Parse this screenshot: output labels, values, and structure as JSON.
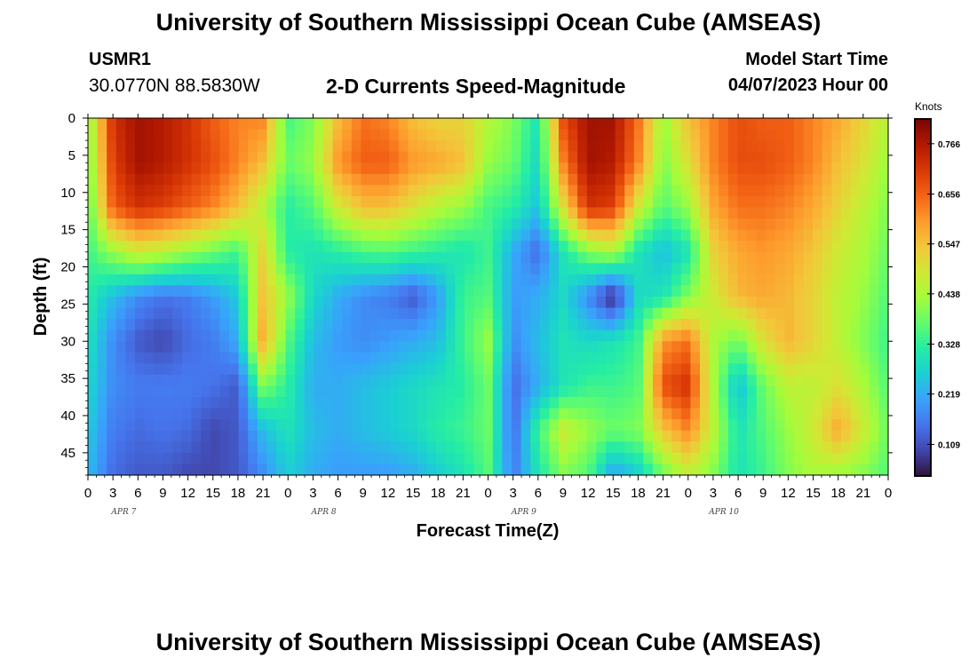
{
  "header": {
    "title": "University of Southern Mississippi Ocean Cube (AMSEAS)",
    "station_id": "USMR1",
    "coordinates": "30.0770N  88.5830W",
    "subtitle": "2-D Currents Speed-Magnitude",
    "start_label": "Model Start Time",
    "start_value": "04/07/2023 Hour 00"
  },
  "footer": {
    "title": "University of Southern Mississippi Ocean Cube (AMSEAS)"
  },
  "chart_data": {
    "type": "heatmap",
    "xlabel": "Forecast Time(Z)",
    "ylabel": "Depth (ft)",
    "units": "Knots",
    "x_ticks": [
      "0",
      "3",
      "6",
      "9",
      "12",
      "15",
      "18",
      "21",
      "0",
      "3",
      "6",
      "9",
      "12",
      "15",
      "18",
      "21",
      "0",
      "3",
      "6",
      "9",
      "12",
      "15",
      "18",
      "21",
      "0",
      "3",
      "6",
      "9",
      "12",
      "15",
      "18",
      "21",
      "0"
    ],
    "x_range_hours": [
      0,
      96
    ],
    "day_labels": [
      "APR 7",
      "APR 8",
      "APR 9",
      "APR 10"
    ],
    "y_ticks": [
      "0",
      "5",
      "10",
      "15",
      "20",
      "25",
      "30",
      "35",
      "40",
      "45"
    ],
    "y_range_ft": [
      0,
      48
    ],
    "y_reversed": true,
    "colorbar": {
      "ticks": [
        "0.766",
        "0.656",
        "0.547",
        "0.438",
        "0.328",
        "0.219",
        "0.109"
      ],
      "range": [
        0.04,
        0.82
      ],
      "colors": [
        "#30123b",
        "#4145ab",
        "#4675ed",
        "#39a2fc",
        "#1bcfd4",
        "#24eca6",
        "#61fc6c",
        "#a4fc3b",
        "#d1e834",
        "#f3c63a",
        "#fe9b2d",
        "#f36315",
        "#d93806",
        "#b11901",
        "#7a0403"
      ]
    },
    "speed_field": {
      "x_hours": [
        0,
        3,
        6,
        9,
        12,
        15,
        18,
        21,
        24,
        27,
        30,
        33,
        36,
        39,
        42,
        45,
        48,
        51,
        54,
        57,
        60,
        63,
        66,
        69,
        72,
        75,
        78,
        81,
        84,
        87,
        90,
        93,
        96
      ],
      "depth_ft": [
        0,
        6,
        12,
        18,
        24,
        30,
        36,
        42,
        48
      ],
      "z_knots": [
        [
          0.4,
          0.72,
          0.78,
          0.76,
          0.72,
          0.66,
          0.62,
          0.62,
          0.35,
          0.4,
          0.55,
          0.64,
          0.62,
          0.55,
          0.52,
          0.52,
          0.45,
          0.4,
          0.3,
          0.68,
          0.78,
          0.78,
          0.64,
          0.42,
          0.55,
          0.62,
          0.68,
          0.66,
          0.66,
          0.62,
          0.58,
          0.52,
          0.45
        ],
        [
          0.38,
          0.7,
          0.78,
          0.76,
          0.72,
          0.68,
          0.62,
          0.55,
          0.38,
          0.42,
          0.6,
          0.66,
          0.66,
          0.6,
          0.58,
          0.55,
          0.42,
          0.38,
          0.28,
          0.62,
          0.78,
          0.76,
          0.62,
          0.4,
          0.5,
          0.62,
          0.68,
          0.68,
          0.66,
          0.62,
          0.55,
          0.5,
          0.42
        ],
        [
          0.36,
          0.66,
          0.72,
          0.7,
          0.66,
          0.62,
          0.55,
          0.45,
          0.32,
          0.36,
          0.48,
          0.55,
          0.55,
          0.5,
          0.45,
          0.42,
          0.35,
          0.32,
          0.25,
          0.5,
          0.72,
          0.7,
          0.48,
          0.36,
          0.42,
          0.58,
          0.64,
          0.64,
          0.62,
          0.58,
          0.52,
          0.46,
          0.4
        ],
        [
          0.34,
          0.42,
          0.48,
          0.46,
          0.42,
          0.38,
          0.34,
          0.52,
          0.32,
          0.3,
          0.32,
          0.35,
          0.36,
          0.34,
          0.32,
          0.3,
          0.34,
          0.22,
          0.14,
          0.3,
          0.4,
          0.44,
          0.3,
          0.24,
          0.3,
          0.52,
          0.58,
          0.6,
          0.58,
          0.54,
          0.48,
          0.44,
          0.38
        ],
        [
          0.32,
          0.24,
          0.18,
          0.15,
          0.16,
          0.2,
          0.26,
          0.55,
          0.42,
          0.28,
          0.22,
          0.18,
          0.16,
          0.12,
          0.2,
          0.34,
          0.36,
          0.2,
          0.22,
          0.28,
          0.18,
          0.06,
          0.28,
          0.3,
          0.4,
          0.48,
          0.56,
          0.58,
          0.56,
          0.52,
          0.46,
          0.42,
          0.36
        ],
        [
          0.3,
          0.18,
          0.12,
          0.1,
          0.14,
          0.16,
          0.22,
          0.58,
          0.36,
          0.24,
          0.2,
          0.18,
          0.2,
          0.22,
          0.24,
          0.34,
          0.42,
          0.18,
          0.24,
          0.3,
          0.28,
          0.3,
          0.34,
          0.6,
          0.64,
          0.44,
          0.38,
          0.5,
          0.56,
          0.52,
          0.46,
          0.4,
          0.34
        ],
        [
          0.28,
          0.18,
          0.16,
          0.16,
          0.16,
          0.15,
          0.12,
          0.4,
          0.32,
          0.22,
          0.22,
          0.24,
          0.26,
          0.28,
          0.3,
          0.32,
          0.38,
          0.14,
          0.22,
          0.3,
          0.34,
          0.34,
          0.36,
          0.68,
          0.72,
          0.44,
          0.24,
          0.38,
          0.46,
          0.46,
          0.5,
          0.44,
          0.36
        ],
        [
          0.26,
          0.16,
          0.14,
          0.15,
          0.14,
          0.1,
          0.12,
          0.24,
          0.3,
          0.24,
          0.22,
          0.24,
          0.26,
          0.28,
          0.32,
          0.34,
          0.38,
          0.14,
          0.34,
          0.48,
          0.42,
          0.38,
          0.4,
          0.54,
          0.62,
          0.46,
          0.3,
          0.36,
          0.42,
          0.48,
          0.58,
          0.48,
          0.38
        ],
        [
          0.24,
          0.14,
          0.12,
          0.12,
          0.1,
          0.1,
          0.12,
          0.18,
          0.26,
          0.22,
          0.2,
          0.2,
          0.2,
          0.22,
          0.26,
          0.3,
          0.36,
          0.16,
          0.3,
          0.4,
          0.36,
          0.2,
          0.26,
          0.38,
          0.46,
          0.4,
          0.3,
          0.34,
          0.4,
          0.44,
          0.42,
          0.4,
          0.36
        ]
      ]
    }
  }
}
